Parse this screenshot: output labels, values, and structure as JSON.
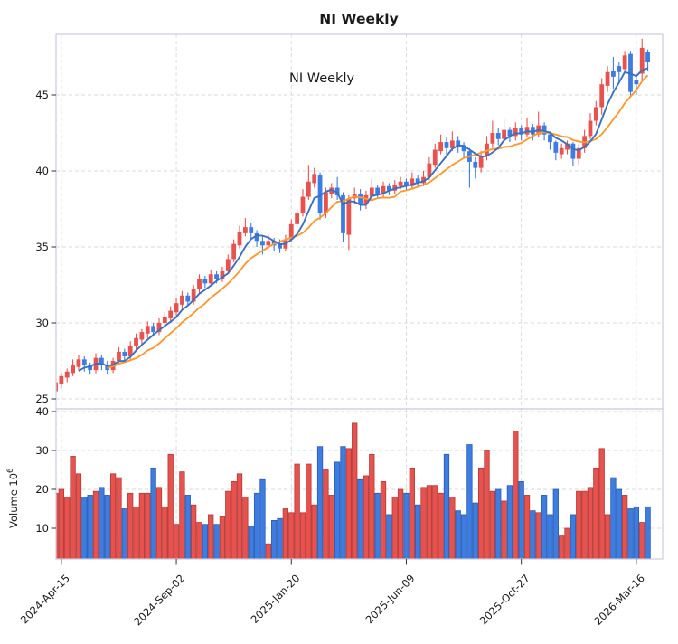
{
  "title": "NI  Weekly",
  "inner_label": "NI  Weekly",
  "colors": {
    "up": "#e8524e",
    "up_edge": "#b03a36",
    "down": "#3d7ce0",
    "down_edge": "#2b5cb0",
    "ma_fast": "#3a70c0",
    "ma_slow": "#fb9a32",
    "grid": "#d9d9d9",
    "spine": "#ccccdf",
    "tick": "#333333",
    "text": "#1a1a1a"
  },
  "chart_data": {
    "type": "candlestick+volume",
    "interval": "weekly",
    "start_date": "2024-04-08",
    "price_axis": {
      "ticks": [
        25,
        30,
        35,
        40,
        45
      ],
      "range": [
        24.3,
        49.0
      ]
    },
    "volume_axis": {
      "ticks": [
        10,
        20,
        30,
        40
      ],
      "label_base": "Volume  10",
      "label_exp": "6",
      "unit": "millions",
      "range": [
        2,
        42
      ]
    },
    "x_ticks": [
      {
        "label": "2024-Apr-15",
        "week": 1
      },
      {
        "label": "2024-Sep-02",
        "week": 21
      },
      {
        "label": "2025-Jan-20",
        "week": 41
      },
      {
        "label": "2025-Jun-09",
        "week": 61
      },
      {
        "label": "2025-Oct-27",
        "week": 81
      },
      {
        "label": "2026-Mar-16",
        "week": 101
      }
    ],
    "ma_fast_period": 5,
    "ma_slow_period": 10,
    "ohlc": [
      [
        25.5,
        26.3,
        25.1,
        26.1
      ],
      [
        26.0,
        26.7,
        25.7,
        26.5
      ],
      [
        26.4,
        27.0,
        26.1,
        26.8
      ],
      [
        26.7,
        27.6,
        26.5,
        27.2
      ],
      [
        27.1,
        27.9,
        26.9,
        27.6
      ],
      [
        27.6,
        27.8,
        26.8,
        27.2
      ],
      [
        27.2,
        27.4,
        26.6,
        26.9
      ],
      [
        26.9,
        28.0,
        26.7,
        27.7
      ],
      [
        27.7,
        27.9,
        26.9,
        27.2
      ],
      [
        27.2,
        27.5,
        26.6,
        26.9
      ],
      [
        26.9,
        27.7,
        26.7,
        27.5
      ],
      [
        27.5,
        28.4,
        27.2,
        28.1
      ],
      [
        28.1,
        28.3,
        27.5,
        27.8
      ],
      [
        27.8,
        28.8,
        27.6,
        28.5
      ],
      [
        28.5,
        29.3,
        28.2,
        29.0
      ],
      [
        28.9,
        29.6,
        28.6,
        29.4
      ],
      [
        29.3,
        30.1,
        29.0,
        29.8
      ],
      [
        29.8,
        30.0,
        29.1,
        29.4
      ],
      [
        29.4,
        30.3,
        29.2,
        30.0
      ],
      [
        30.0,
        30.7,
        29.7,
        30.4
      ],
      [
        30.3,
        31.1,
        30.0,
        30.8
      ],
      [
        30.7,
        31.6,
        30.4,
        31.3
      ],
      [
        31.2,
        32.1,
        30.9,
        31.8
      ],
      [
        31.8,
        32.0,
        31.1,
        31.4
      ],
      [
        31.4,
        32.5,
        31.2,
        32.2
      ],
      [
        32.2,
        33.2,
        31.9,
        32.9
      ],
      [
        32.9,
        33.1,
        32.3,
        32.6
      ],
      [
        32.6,
        33.5,
        32.4,
        33.2
      ],
      [
        33.2,
        33.4,
        32.6,
        32.9
      ],
      [
        32.9,
        33.7,
        32.7,
        33.4
      ],
      [
        33.4,
        34.5,
        33.2,
        34.2
      ],
      [
        34.2,
        35.5,
        34.0,
        35.2
      ],
      [
        35.1,
        36.4,
        34.9,
        36.0
      ],
      [
        35.9,
        36.9,
        35.7,
        36.3
      ],
      [
        36.3,
        36.6,
        35.5,
        35.9
      ],
      [
        35.9,
        36.1,
        35.0,
        35.4
      ],
      [
        35.4,
        35.7,
        34.5,
        35.1
      ],
      [
        35.1,
        35.8,
        34.9,
        35.4
      ],
      [
        35.4,
        35.6,
        34.7,
        35.1
      ],
      [
        35.2,
        35.5,
        34.6,
        34.9
      ],
      [
        34.9,
        35.8,
        34.7,
        35.5
      ],
      [
        35.5,
        36.8,
        35.3,
        36.5
      ],
      [
        36.5,
        37.5,
        36.3,
        37.2
      ],
      [
        37.2,
        38.8,
        37.0,
        38.3
      ],
      [
        38.3,
        40.4,
        38.1,
        39.3
      ],
      [
        39.2,
        40.2,
        38.9,
        39.8
      ],
      [
        39.7,
        39.9,
        36.8,
        37.2
      ],
      [
        37.2,
        38.9,
        36.9,
        38.6
      ],
      [
        38.5,
        39.2,
        38.2,
        38.9
      ],
      [
        38.9,
        39.6,
        38.1,
        38.4
      ],
      [
        38.4,
        38.6,
        35.3,
        35.9
      ],
      [
        35.8,
        38.4,
        34.8,
        38.2
      ],
      [
        38.2,
        38.9,
        37.8,
        38.5
      ],
      [
        38.5,
        38.8,
        37.4,
        37.8
      ],
      [
        37.8,
        38.7,
        37.5,
        38.4
      ],
      [
        38.3,
        39.5,
        38.0,
        38.9
      ],
      [
        38.9,
        39.1,
        38.2,
        38.5
      ],
      [
        38.5,
        39.3,
        38.3,
        39.0
      ],
      [
        39.0,
        39.2,
        38.4,
        38.7
      ],
      [
        38.7,
        39.4,
        38.5,
        39.1
      ],
      [
        39.0,
        39.6,
        38.8,
        39.3
      ],
      [
        39.3,
        39.5,
        38.7,
        39.0
      ],
      [
        39.0,
        39.9,
        38.8,
        39.5
      ],
      [
        39.5,
        39.7,
        38.9,
        39.2
      ],
      [
        39.2,
        40.0,
        39.0,
        39.6
      ],
      [
        39.6,
        40.9,
        39.4,
        40.5
      ],
      [
        40.4,
        41.8,
        40.2,
        41.4
      ],
      [
        41.3,
        42.4,
        41.1,
        41.9
      ],
      [
        41.9,
        42.2,
        41.0,
        41.5
      ],
      [
        41.5,
        42.6,
        41.3,
        42.0
      ],
      [
        42.0,
        42.3,
        41.2,
        41.6
      ],
      [
        41.7,
        41.9,
        40.8,
        41.3
      ],
      [
        41.3,
        41.5,
        38.9,
        40.6
      ],
      [
        40.6,
        40.9,
        39.5,
        40.2
      ],
      [
        40.2,
        41.3,
        39.9,
        41.0
      ],
      [
        41.0,
        42.3,
        40.7,
        41.8
      ],
      [
        41.8,
        43.3,
        41.5,
        42.5
      ],
      [
        42.5,
        42.8,
        41.7,
        42.1
      ],
      [
        42.1,
        43.4,
        41.9,
        42.7
      ],
      [
        42.7,
        42.9,
        41.9,
        42.3
      ],
      [
        42.3,
        43.2,
        42.0,
        42.8
      ],
      [
        42.8,
        43.0,
        42.0,
        42.4
      ],
      [
        42.4,
        43.5,
        42.2,
        42.9
      ],
      [
        42.9,
        43.1,
        42.0,
        42.4
      ],
      [
        42.4,
        43.9,
        42.2,
        43.0
      ],
      [
        43.0,
        43.2,
        42.0,
        42.4
      ],
      [
        42.4,
        42.6,
        41.4,
        41.9
      ],
      [
        41.9,
        42.0,
        40.7,
        41.2
      ],
      [
        41.1,
        41.8,
        40.8,
        41.5
      ],
      [
        41.4,
        42.0,
        41.1,
        41.8
      ],
      [
        41.8,
        41.9,
        40.3,
        40.8
      ],
      [
        40.8,
        41.8,
        40.4,
        41.5
      ],
      [
        41.5,
        42.7,
        41.2,
        42.3
      ],
      [
        42.3,
        43.8,
        42.1,
        43.3
      ],
      [
        43.3,
        44.6,
        43.0,
        44.2
      ],
      [
        44.2,
        46.1,
        43.7,
        45.7
      ],
      [
        45.6,
        46.9,
        45.2,
        46.5
      ],
      [
        46.6,
        47.5,
        45.4,
        46.2
      ],
      [
        46.9,
        47.2,
        45.8,
        46.5
      ],
      [
        46.7,
        47.9,
        46.4,
        47.6
      ],
      [
        47.7,
        47.9,
        44.9,
        45.2
      ],
      [
        46.0,
        46.3,
        45.0,
        45.7
      ],
      [
        46.4,
        48.7,
        45.9,
        48.1
      ],
      [
        47.8,
        48.0,
        46.6,
        47.2
      ]
    ],
    "volume": [
      19,
      20,
      18,
      28.5,
      24,
      18,
      18.5,
      19.5,
      20.5,
      18.5,
      24,
      23,
      15,
      19,
      15.5,
      19,
      19,
      25.5,
      20.5,
      15.5,
      29,
      11,
      24.5,
      18.5,
      16,
      11.5,
      11,
      13.5,
      11,
      13,
      19.5,
      22,
      24,
      18,
      10.5,
      19,
      22.5,
      6,
      12,
      12.5,
      15,
      14,
      26.5,
      14,
      26.5,
      16,
      31,
      25,
      18.5,
      27,
      31,
      30.5,
      37,
      22.5,
      23.5,
      29,
      19,
      22,
      13.5,
      18,
      20,
      19,
      25.5,
      16,
      20.5,
      21,
      21,
      19,
      29,
      18,
      14.5,
      13.5,
      31.5,
      16.5,
      25.5,
      30,
      19.5,
      20,
      17,
      21,
      35,
      22,
      18.5,
      14.5,
      14,
      18.5,
      13.5,
      20,
      8,
      10,
      13.5,
      19.5,
      19.5,
      20.5,
      25.5,
      30.5,
      13.5,
      23,
      20,
      18.5,
      15,
      15.5,
      11.5,
      15.5
    ]
  }
}
